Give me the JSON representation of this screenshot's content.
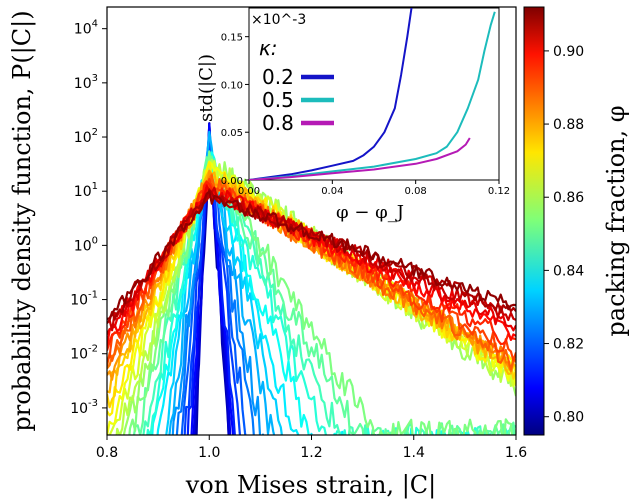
{
  "chart_data": [
    {
      "type": "line",
      "xlabel": "von Mises strain, |C|",
      "ylabel": "probability density function, P(|C|)",
      "xlim": [
        0.8,
        1.6
      ],
      "ylim_log10": [
        -3.5,
        4.4
      ],
      "yscale": "log",
      "x_ticks": [
        "0.8",
        "1.0",
        "1.2",
        "1.4",
        "1.6"
      ],
      "x_tick_values": [
        0.8,
        1.0,
        1.2,
        1.4,
        1.6
      ],
      "y_ticks": [
        "10^-3",
        "10^-2",
        "10^-1",
        "10^0",
        "10^1",
        "10^2",
        "10^3",
        "10^4"
      ],
      "y_tick_exponents": [
        -3,
        -2,
        -1,
        0,
        1,
        2,
        3,
        4
      ],
      "colorbar": {
        "label": "packing fraction, φ",
        "min": 0.795,
        "max": 0.912,
        "colormap": "jet",
        "ticks": [
          "0.80",
          "0.82",
          "0.84",
          "0.86",
          "0.88",
          "0.90"
        ],
        "tick_values": [
          0.8,
          0.82,
          0.84,
          0.86,
          0.88,
          0.9
        ]
      },
      "series_note_phi_range": [
        0.8,
        0.91
      ],
      "peak_log10_low_phi": 2.1,
      "peak_log10_high_phi": 0.9
    },
    {
      "type": "line",
      "xlabel": "φ − φ_J",
      "ylabel": "std(|C|)",
      "multiplier": "×10^-3",
      "xlim": [
        0,
        0.12
      ],
      "ylim": [
        0,
        0.18
      ],
      "x_ticks": [
        "0.00",
        "0.04",
        "0.08",
        "0.12"
      ],
      "x_tick_values": [
        0,
        0.04,
        0.08,
        0.12
      ],
      "y_ticks": [
        "0.00",
        "0.05",
        "0.10",
        "0.15"
      ],
      "y_tick_values": [
        0,
        0.05,
        0.1,
        0.15
      ],
      "legend_title": "κ:",
      "legend_position": "upper-left",
      "series": [
        {
          "name": "0.2",
          "color": "#1414c8",
          "x": [
            0.0,
            0.01,
            0.02,
            0.03,
            0.04,
            0.05,
            0.055,
            0.06,
            0.065,
            0.07,
            0.073,
            0.076,
            0.078
          ],
          "y": [
            0.0,
            0.003,
            0.006,
            0.01,
            0.015,
            0.02,
            0.026,
            0.035,
            0.05,
            0.075,
            0.11,
            0.15,
            0.18
          ]
        },
        {
          "name": "0.5",
          "color": "#1cbcbc",
          "x": [
            0.0,
            0.02,
            0.04,
            0.06,
            0.08,
            0.09,
            0.095,
            0.1,
            0.105,
            0.11,
            0.113,
            0.116,
            0.118
          ],
          "y": [
            0.0,
            0.004,
            0.009,
            0.014,
            0.022,
            0.028,
            0.035,
            0.05,
            0.075,
            0.105,
            0.135,
            0.162,
            0.176
          ]
        },
        {
          "name": "0.8",
          "color": "#b51ab5",
          "x": [
            0.0,
            0.02,
            0.04,
            0.06,
            0.08,
            0.09,
            0.1,
            0.104,
            0.106
          ],
          "y": [
            0.0,
            0.003,
            0.007,
            0.011,
            0.017,
            0.022,
            0.03,
            0.037,
            0.044
          ]
        }
      ]
    }
  ]
}
